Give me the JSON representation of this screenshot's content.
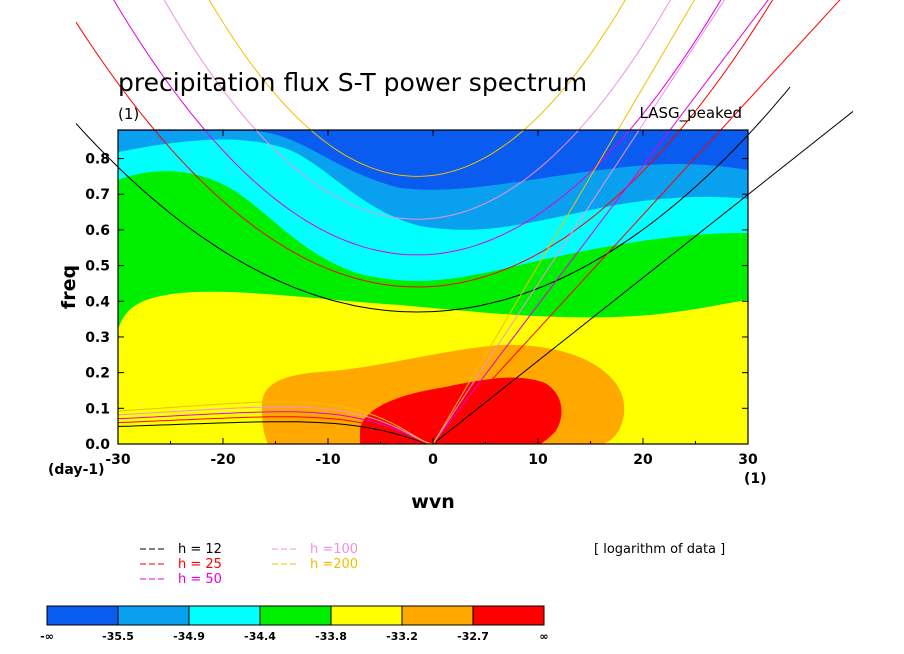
{
  "chart_data": {
    "type": "heatmap",
    "title": "precipitation flux S-T power spectrum",
    "subtitle": "(1)",
    "model_label": "LASG_peaked",
    "xlabel": "wvn",
    "ylabel": "freq",
    "x_unit": "(1)",
    "y_unit": "(day-1)",
    "xlim": [
      -30,
      30
    ],
    "ylim": [
      0.0,
      0.88
    ],
    "x_ticks": [
      "-30",
      "-20",
      "-10",
      "0",
      "10",
      "20",
      "30"
    ],
    "y_ticks": [
      "0.0",
      "0.1",
      "0.2",
      "0.3",
      "0.4",
      "0.5",
      "0.6",
      "0.7",
      "0.8"
    ],
    "note": "[ logarithm of data ]",
    "colorbar": {
      "labels": [
        "-∞",
        "-35.5",
        "-34.9",
        "-34.4",
        "-33.8",
        "-33.2",
        "-32.7",
        "∞"
      ],
      "colors": [
        "#0a5bf0",
        "#0aa0f0",
        "#00ffff",
        "#00ee00",
        "#ffff00",
        "#ffa800",
        "#ff0000"
      ]
    },
    "level_regions": [
      {
        "level": ">= -32.7",
        "color": "#ff0000",
        "description": "peak centered near wvn 5, freq 0.1"
      },
      {
        "level": "-33.2 to -32.7",
        "color": "#ffa800"
      },
      {
        "level": "-33.8 to -33.2",
        "color": "#ffff00"
      },
      {
        "level": "-34.4 to -33.8",
        "color": "#00ee00"
      },
      {
        "level": "-34.9 to -34.4",
        "color": "#00ffff"
      },
      {
        "level": "-35.5 to -34.9",
        "color": "#0aa0f0"
      },
      {
        "level": "< -35.5",
        "color": "#0a5bf0"
      }
    ],
    "dispersion_curves": [
      {
        "label": "h = 12",
        "color": "#000000",
        "inertia_gravity_min_freq": 0.37
      },
      {
        "label": "h = 25",
        "color": "#ff0000",
        "inertia_gravity_min_freq": 0.44
      },
      {
        "label": "h = 50",
        "color": "#e000e0",
        "inertia_gravity_min_freq": 0.53
      },
      {
        "label": "h =100",
        "color": "#f090e0",
        "inertia_gravity_min_freq": 0.63
      },
      {
        "label": "h =200",
        "color": "#f0c000",
        "inertia_gravity_min_freq": 0.75
      }
    ]
  }
}
